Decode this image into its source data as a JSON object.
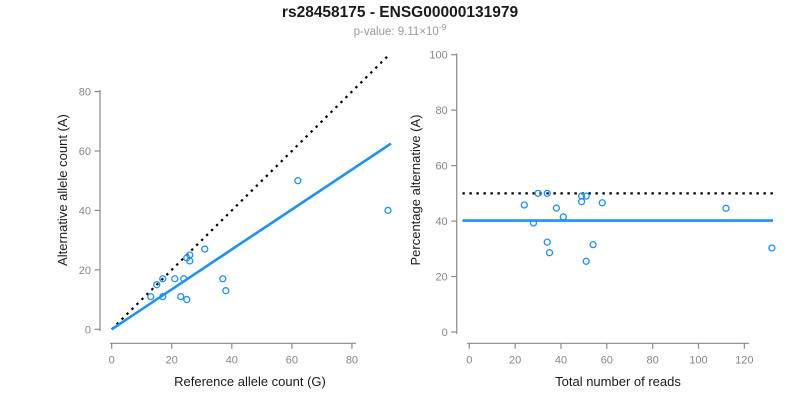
{
  "header": {
    "title": "rs28458175 - ENSG00000131979",
    "subtitle_prefix": "p-value: 9.11×10",
    "subtitle_exponent": "-9"
  },
  "colors": {
    "accent_blue": "#1E90FF",
    "line_black": "#000000",
    "axis_gray": "#8A8A8A",
    "tick_label_gray": "#878787",
    "subtitle_gray": "#9B9B9B"
  },
  "chart_data": [
    {
      "id": "allele_counts_scatter",
      "type": "scatter",
      "title": "",
      "xlabel": "Reference allele count (G)",
      "ylabel": "Alternative allele count (A)",
      "x_ticks": [
        0,
        20,
        40,
        60,
        80
      ],
      "y_ticks": [
        0,
        20,
        40,
        60,
        80
      ],
      "xlim": [
        0,
        93
      ],
      "ylim": [
        0,
        93
      ],
      "marker": "open-circle",
      "grid": false,
      "legend": false,
      "points": [
        [
          62,
          50
        ],
        [
          92,
          40
        ],
        [
          31,
          27
        ],
        [
          26,
          25
        ],
        [
          25,
          24
        ],
        [
          26,
          23
        ],
        [
          37,
          17
        ],
        [
          38,
          13
        ],
        [
          15,
          15
        ],
        [
          17,
          17
        ],
        [
          21,
          17
        ],
        [
          24,
          17
        ],
        [
          13,
          11
        ],
        [
          17,
          11
        ],
        [
          23,
          11
        ],
        [
          25,
          10
        ]
      ],
      "lines": [
        {
          "name": "identity-line",
          "style": "dotted",
          "color": "#000000",
          "x1": 0,
          "y1": 0,
          "x2": 92,
          "y2": 92
        },
        {
          "name": "fit-line",
          "style": "solid",
          "color": "#1E90FF",
          "x1": 0,
          "y1": 0,
          "x2": 93,
          "y2": 62.5
        }
      ]
    },
    {
      "id": "percentage_scatter",
      "type": "scatter",
      "title": "",
      "xlabel": "Total number of reads",
      "ylabel": "Percentage alternative (A)",
      "x_ticks": [
        0,
        20,
        40,
        60,
        80,
        100,
        120
      ],
      "y_ticks": [
        0,
        20,
        40,
        60,
        80,
        100
      ],
      "xlim": [
        -3,
        133
      ],
      "ylim": [
        0,
        100
      ],
      "marker": "open-circle",
      "grid": false,
      "legend": false,
      "points": [
        [
          112,
          44.6
        ],
        [
          132,
          30.3
        ],
        [
          58,
          46.6
        ],
        [
          51,
          49.0
        ],
        [
          49,
          49.0
        ],
        [
          49,
          47.0
        ],
        [
          54,
          31.5
        ],
        [
          51,
          25.5
        ],
        [
          30,
          50.0
        ],
        [
          34,
          50.0
        ],
        [
          38,
          44.7
        ],
        [
          41,
          41.5
        ],
        [
          24,
          45.8
        ],
        [
          28,
          39.3
        ],
        [
          34,
          32.4
        ],
        [
          35,
          28.6
        ]
      ],
      "lines": [
        {
          "name": "expected-line",
          "style": "dotted",
          "color": "#000000",
          "x1": -3,
          "y1": 50,
          "x2": 132.5,
          "y2": 50
        },
        {
          "name": "observed-line",
          "style": "solid",
          "color": "#1E90FF",
          "x1": -3,
          "y1": 40.2,
          "x2": 132.5,
          "y2": 40.2
        }
      ]
    }
  ]
}
